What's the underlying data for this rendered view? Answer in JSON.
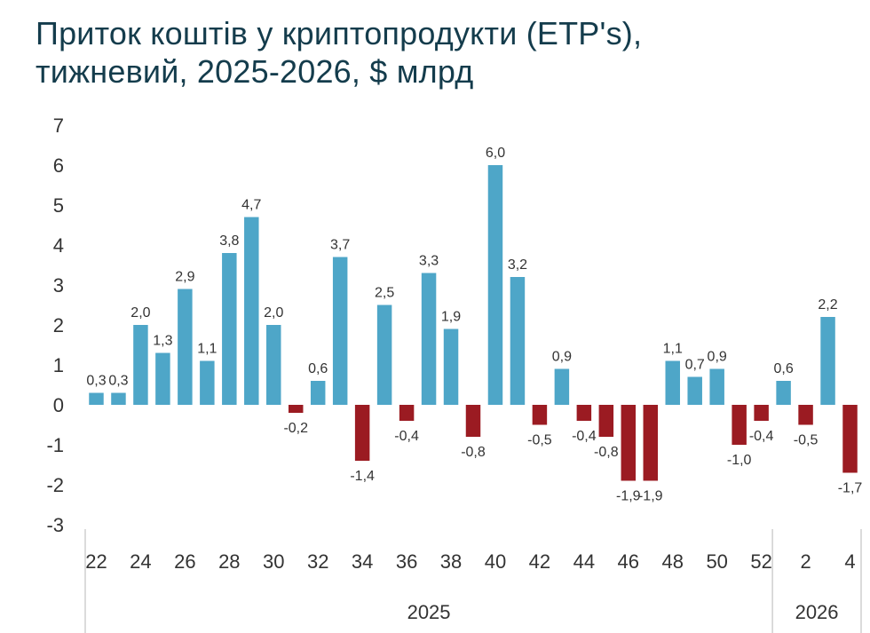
{
  "title": {
    "line1": "Приток коштів у криптопродукти (ETP's),",
    "line2": "тижневий, 2025-2026, $ млрд"
  },
  "chart_data": {
    "type": "bar",
    "title": "Приток коштів у криптопродукти (ETP's), тижневий, 2025-2026, $ млрд",
    "xlabel": "",
    "ylabel": "",
    "ylim": [
      -3,
      7
    ],
    "yticks": [
      "-3",
      "-2",
      "-1",
      "0",
      "1",
      "2",
      "3",
      "4",
      "5",
      "6",
      "7"
    ],
    "grid": false,
    "legend": "none",
    "colors": {
      "positive": "#4ea6c8",
      "negative": "#9b1b22"
    },
    "weeks": [
      "22",
      "23",
      "24",
      "25",
      "26",
      "27",
      "28",
      "29",
      "30",
      "31",
      "32",
      "33",
      "34",
      "35",
      "36",
      "37",
      "38",
      "39",
      "40",
      "41",
      "42",
      "43",
      "44",
      "45",
      "46",
      "47",
      "48",
      "49",
      "50",
      "51",
      "52",
      "1",
      "2",
      "3",
      "4"
    ],
    "xticks": [
      "22",
      "24",
      "26",
      "28",
      "30",
      "32",
      "34",
      "36",
      "38",
      "40",
      "42",
      "44",
      "46",
      "48",
      "50",
      "52",
      "2",
      "4"
    ],
    "values": [
      0.3,
      0.3,
      2.0,
      1.3,
      2.9,
      1.1,
      3.8,
      4.7,
      2.0,
      -0.2,
      0.6,
      3.7,
      -1.4,
      2.5,
      -0.4,
      3.3,
      1.9,
      -0.8,
      6.0,
      3.2,
      -0.5,
      0.9,
      -0.4,
      -0.8,
      -1.9,
      -1.9,
      1.1,
      0.7,
      0.9,
      -1.0,
      -0.4,
      0.6,
      -0.5,
      2.2,
      -1.7
    ],
    "labels": [
      "0,3",
      "0,3",
      "2,0",
      "1,3",
      "2,9",
      "1,1",
      "3,8",
      "4,7",
      "2,0",
      "-0,2",
      "0,6",
      "3,7",
      "-1,4",
      "2,5",
      "-0,4",
      "3,3",
      "1,9",
      "-0,8",
      "6,0",
      "3,2",
      "-0,5",
      "0,9",
      "-0,4",
      "-0,8",
      "-1,9",
      "-1,9",
      "1,1",
      "0,7",
      "0,9",
      "-1,0",
      "-0,4",
      "0,6",
      "-0,5",
      "2,2",
      "-1,7"
    ],
    "year_groups": [
      {
        "label": "2025",
        "count": 31
      },
      {
        "label": "2026",
        "count": 4
      }
    ]
  }
}
